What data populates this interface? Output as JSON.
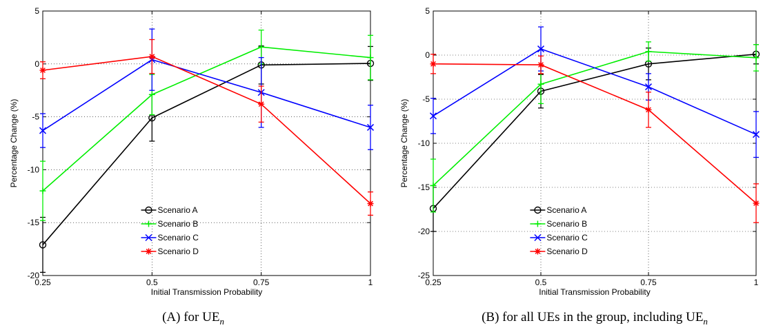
{
  "colors": {
    "Scenario A": "#000000",
    "Scenario B": "#00ee00",
    "Scenario C": "#0000ff",
    "Scenario D": "#ff0000"
  },
  "chart_data": [
    {
      "type": "line",
      "caption": {
        "label": "(A)",
        "text": "for UE",
        "sub": "n"
      },
      "xlabel": "Initial Transmission Probability",
      "ylabel": "Percentage Change (%)",
      "xlim": [
        0.25,
        1
      ],
      "ylim": [
        -20,
        5
      ],
      "x": [
        0.25,
        0.5,
        0.75,
        1
      ],
      "x_tick_labels": [
        "0.25",
        "0.5",
        "0.75",
        "1"
      ],
      "y_ticks": [
        -20,
        -15,
        -10,
        -5,
        0,
        5
      ],
      "grid": true,
      "legend_position": "bottom-center",
      "series": [
        {
          "name": "Scenario A",
          "marker": "circle",
          "values": [
            -17.1,
            -5.1,
            -0.1,
            0.05
          ],
          "err": [
            2.6,
            2.2,
            1.8,
            1.6
          ]
        },
        {
          "name": "Scenario B",
          "marker": "plus",
          "values": [
            -12.0,
            -2.9,
            1.6,
            0.6
          ],
          "err": [
            2.8,
            1.9,
            1.6,
            2.1
          ]
        },
        {
          "name": "Scenario C",
          "marker": "x",
          "values": [
            -6.3,
            0.4,
            -2.7,
            -6.0
          ],
          "err": [
            1.6,
            2.9,
            3.3,
            2.1
          ]
        },
        {
          "name": "Scenario D",
          "marker": "star",
          "values": [
            -0.6,
            0.7,
            -3.8,
            -13.2
          ],
          "err": [
            0.8,
            1.6,
            1.7,
            1.1
          ]
        }
      ]
    },
    {
      "type": "line",
      "caption": {
        "label": "(B)",
        "text": "for all UEs in the group, including UE",
        "sub": "n"
      },
      "xlabel": "Initial Transmission Probability",
      "ylabel": "Percentage Change (%)",
      "xlim": [
        0.25,
        1
      ],
      "ylim": [
        -25,
        5
      ],
      "x": [
        0.25,
        0.5,
        0.75,
        1
      ],
      "x_tick_labels": [
        "0.25",
        "0.5",
        "0.75",
        "1"
      ],
      "y_ticks": [
        -25,
        -20,
        -15,
        -10,
        -5,
        0,
        5
      ],
      "grid": true,
      "legend_position": "bottom-center",
      "series": [
        {
          "name": "Scenario A",
          "marker": "circle",
          "values": [
            -17.4,
            -4.1,
            -1.0,
            0.1
          ],
          "err": [
            2.6,
            1.9,
            1.8,
            1.1
          ]
        },
        {
          "name": "Scenario B",
          "marker": "plus",
          "values": [
            -14.8,
            -3.3,
            0.4,
            -0.3
          ],
          "err": [
            3.0,
            2.2,
            1.1,
            1.5
          ]
        },
        {
          "name": "Scenario C",
          "marker": "x",
          "values": [
            -6.9,
            0.7,
            -3.6,
            -9.0
          ],
          "err": [
            2.0,
            2.5,
            1.5,
            2.6
          ]
        },
        {
          "name": "Scenario D",
          "marker": "star",
          "values": [
            -1.0,
            -1.1,
            -6.2,
            -16.8
          ],
          "err": [
            1.1,
            1.0,
            2.0,
            2.2
          ]
        }
      ]
    }
  ]
}
